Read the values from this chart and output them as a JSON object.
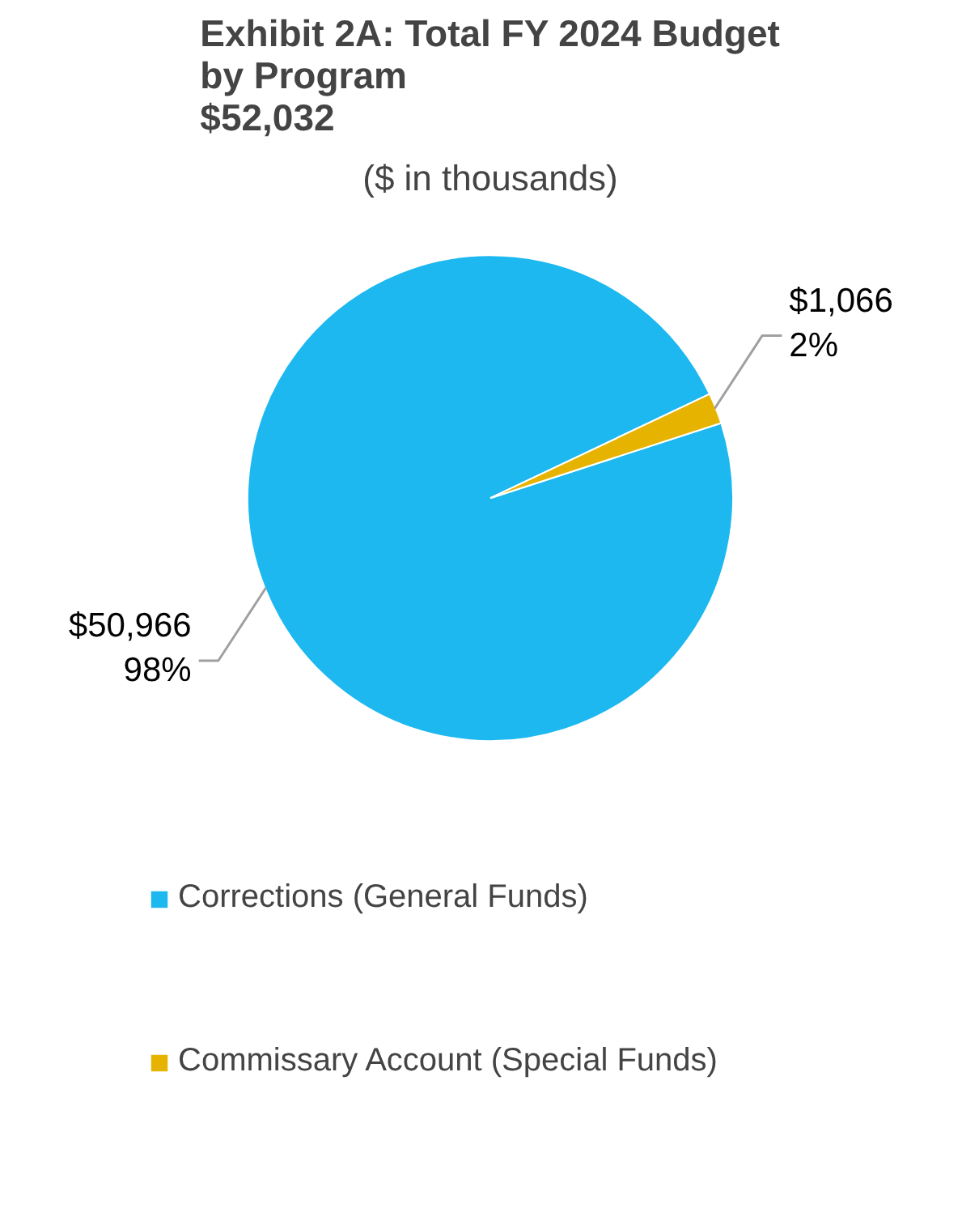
{
  "chart_data": {
    "type": "pie",
    "title": "Exhibit 2A: Total FY 2024 Budget\nby Program\n$52,032",
    "subtitle": "($ in thousands)",
    "categories": [
      "Corrections (General Funds)",
      "Commissary Account (Special Funds)"
    ],
    "values": [
      50966,
      1066
    ],
    "colors": [
      "#1cb8ef",
      "#e6b400"
    ],
    "value_labels": [
      "$50,966\n98%",
      "$1,066\n2%"
    ],
    "legend": "bottom"
  }
}
